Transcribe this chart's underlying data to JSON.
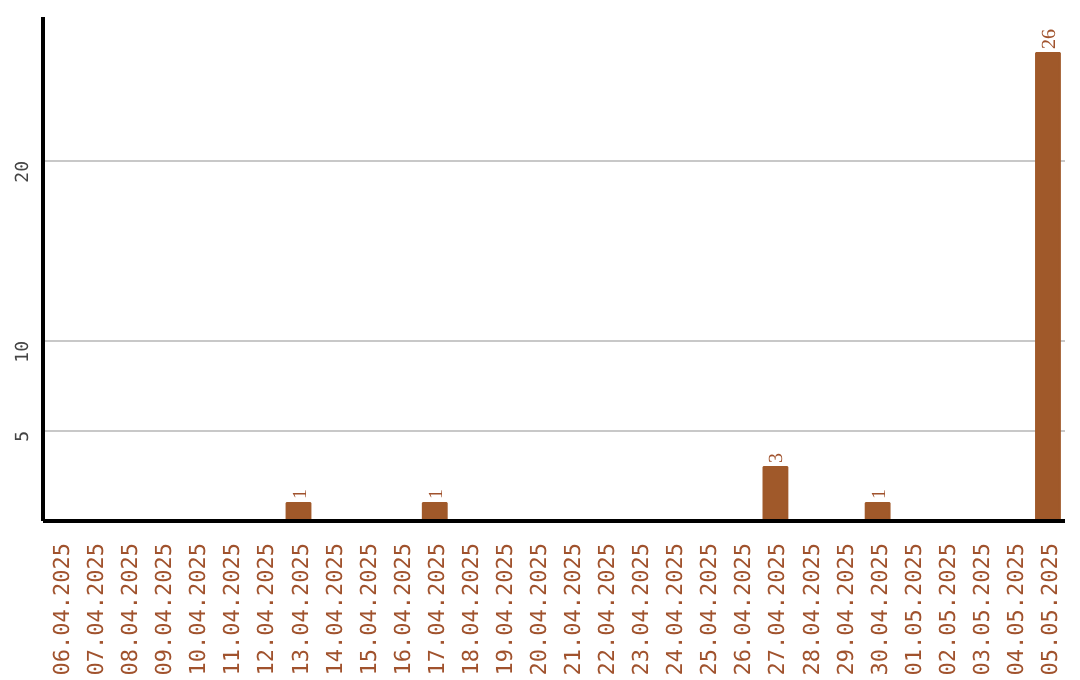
{
  "chart_data": {
    "type": "bar",
    "categories": [
      "06.04.2025",
      "07.04.2025",
      "08.04.2025",
      "09.04.2025",
      "10.04.2025",
      "11.04.2025",
      "12.04.2025",
      "13.04.2025",
      "14.04.2025",
      "15.04.2025",
      "16.04.2025",
      "17.04.2025",
      "18.04.2025",
      "19.04.2025",
      "20.04.2025",
      "21.04.2025",
      "22.04.2025",
      "23.04.2025",
      "24.04.2025",
      "25.04.2025",
      "26.04.2025",
      "27.04.2025",
      "28.04.2025",
      "29.04.2025",
      "30.04.2025",
      "01.05.2025",
      "02.05.2025",
      "03.05.2025",
      "04.05.2025",
      "05.05.2025"
    ],
    "values": [
      0,
      0,
      0,
      0,
      0,
      0,
      0,
      1,
      0,
      0,
      0,
      1,
      0,
      0,
      0,
      0,
      0,
      0,
      0,
      0,
      0,
      3,
      0,
      0,
      1,
      0,
      0,
      0,
      0,
      26
    ],
    "value_labels": [
      null,
      null,
      null,
      null,
      null,
      null,
      null,
      "1",
      null,
      null,
      null,
      "1",
      null,
      null,
      null,
      null,
      null,
      null,
      null,
      null,
      null,
      "3",
      null,
      null,
      "1",
      null,
      null,
      null,
      null,
      "26"
    ],
    "color": "#a0592a",
    "ylim": [
      0,
      28
    ],
    "yticks": [
      5,
      10,
      20
    ],
    "grid": "y"
  }
}
